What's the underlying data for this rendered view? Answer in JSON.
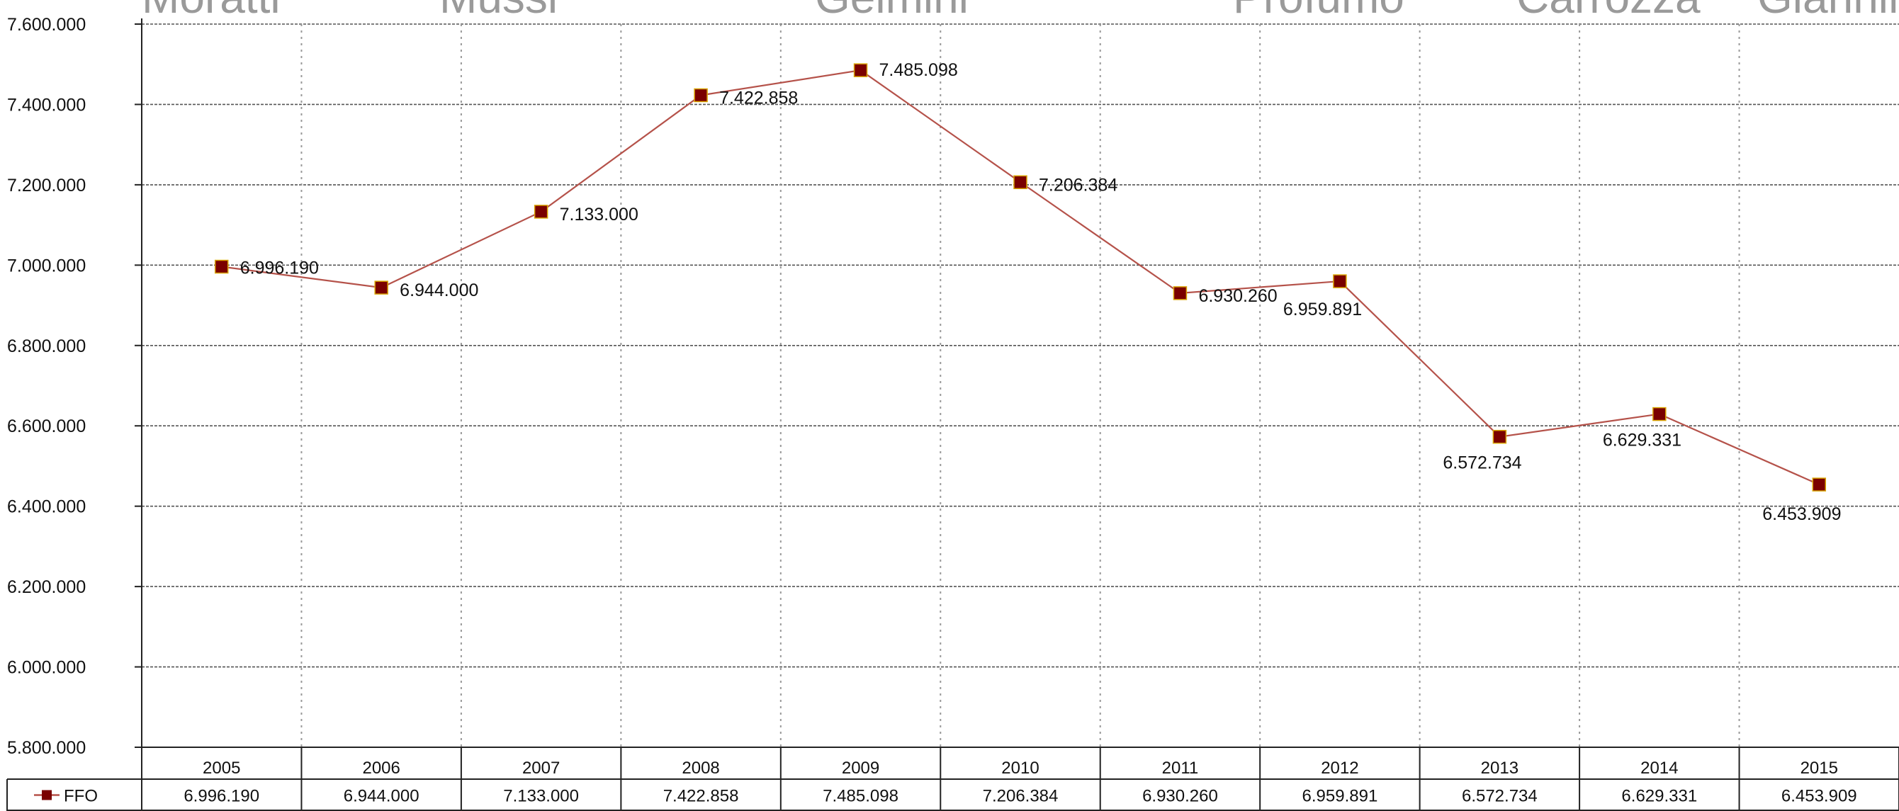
{
  "page_header": {
    "words": [
      "Moratti",
      "Mussi",
      "Gelmini",
      "Profumo",
      "Carrozza",
      "Giannini"
    ]
  },
  "chart_data": {
    "type": "line",
    "title": "",
    "xlabel": "",
    "ylabel": "",
    "categories": [
      "2005",
      "2006",
      "2007",
      "2008",
      "2009",
      "2010",
      "2011",
      "2012",
      "2013",
      "2014",
      "2015"
    ],
    "ylim": [
      5800000,
      7600000
    ],
    "y_ticks": [
      5800000,
      6000000,
      6200000,
      6400000,
      6600000,
      6800000,
      7000000,
      7200000,
      7400000,
      7600000
    ],
    "y_tick_labels": [
      "5.800.000",
      "6.000.000",
      "6.200.000",
      "6.400.000",
      "6.600.000",
      "6.800.000",
      "7.000.000",
      "7.200.000",
      "7.400.000",
      "7.600.000"
    ],
    "grid": {
      "horizontal": "dashed",
      "vertical": "dotted"
    },
    "legend": "data-table-left",
    "series": [
      {
        "name": "FFO",
        "color": "#b5524a",
        "marker_color": "#7a0000",
        "values": [
          6996190,
          6944000,
          7133000,
          7422858,
          7485098,
          7206384,
          6930260,
          6959891,
          6572734,
          6629331,
          6453909
        ],
        "labels": [
          "6.996.190",
          "6.944.000",
          "7.133.000",
          "7.422.858",
          "7.485.098",
          "7.206.384",
          "6.930.260",
          "6.959.891",
          "6.572.734",
          "6.629.331",
          "6.453.909"
        ]
      }
    ]
  }
}
